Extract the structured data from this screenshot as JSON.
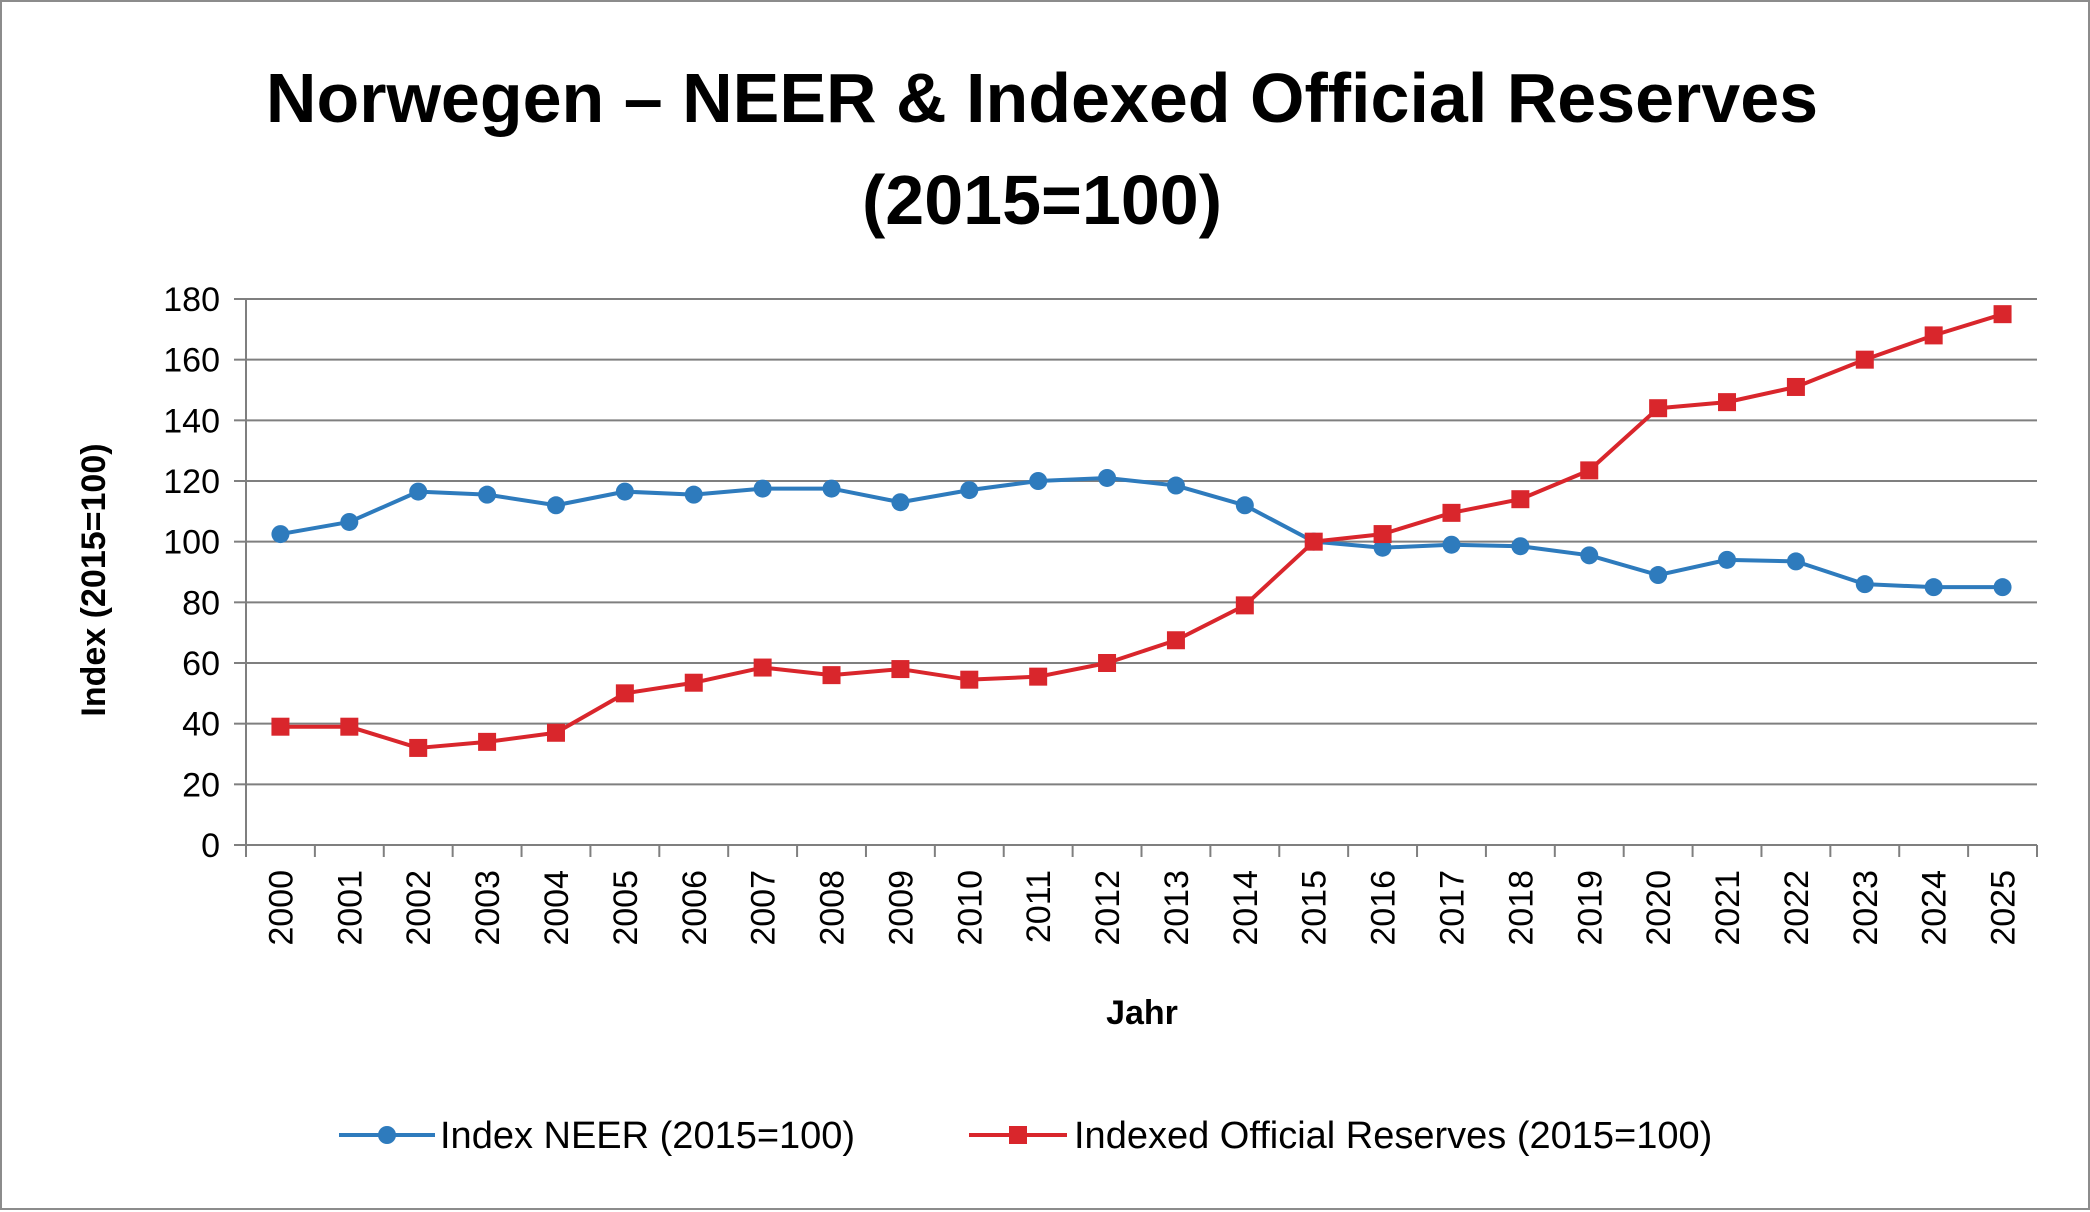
{
  "chart_data": {
    "type": "line",
    "title_line1": "Norwegen – NEER & Indexed Official Reserves",
    "title_line2": "(2015=100)",
    "xlabel": "Jahr",
    "ylabel": "Index (2015=100)",
    "ylim": [
      0,
      180
    ],
    "yticks": [
      "0",
      "20",
      "40",
      "60",
      "80",
      "100",
      "120",
      "140",
      "160",
      "180"
    ],
    "categories": [
      "2000",
      "2001",
      "2002",
      "2003",
      "2004",
      "2005",
      "2006",
      "2007",
      "2008",
      "2009",
      "2010",
      "2011",
      "2012",
      "2013",
      "2014",
      "2015",
      "2016",
      "2017",
      "2018",
      "2019",
      "2020",
      "2021",
      "2022",
      "2023",
      "2024",
      "2025"
    ],
    "grid": true,
    "legend_position": "bottom",
    "series": [
      {
        "name": "Index NEER (2015=100)",
        "color": "#2e7bbd",
        "marker": "circle",
        "values": [
          102.5,
          106.5,
          116.5,
          115.5,
          112,
          116.5,
          115.5,
          117.5,
          117.5,
          113,
          117,
          120,
          121,
          118.5,
          112,
          100,
          98,
          99,
          98.5,
          95.5,
          89,
          94,
          93.5,
          86,
          85,
          85
        ]
      },
      {
        "name": "Indexed Official Reserves (2015=100)",
        "color": "#d9262c",
        "marker": "square",
        "values": [
          39,
          39,
          32,
          34,
          37,
          50,
          53.5,
          58.5,
          56,
          58,
          54.5,
          55.5,
          60,
          67.5,
          79,
          100,
          102.5,
          109.5,
          114,
          123.5,
          144,
          146,
          151,
          160,
          168,
          175
        ]
      }
    ]
  }
}
